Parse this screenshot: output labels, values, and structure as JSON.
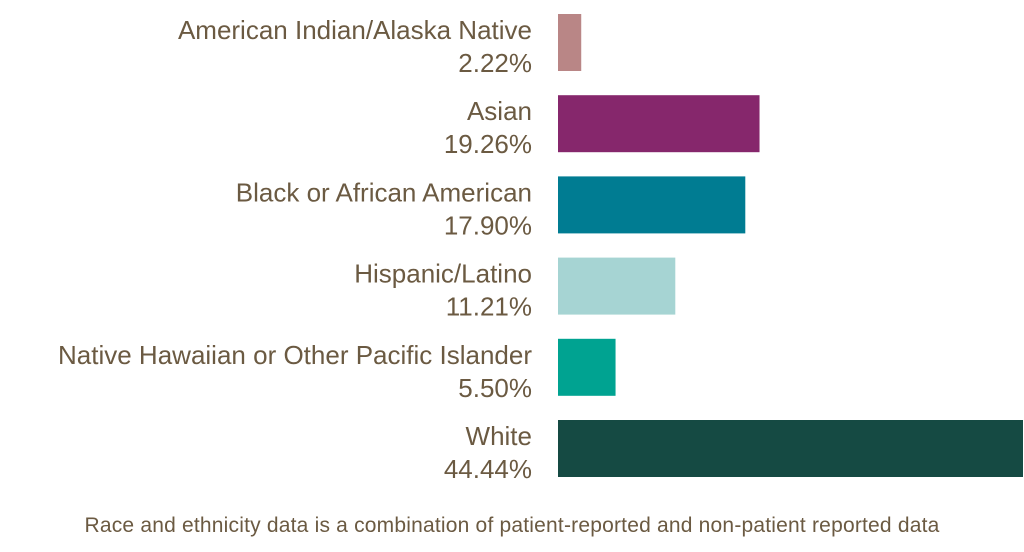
{
  "chart_data": {
    "type": "bar",
    "orientation": "horizontal",
    "categories": [
      "American Indian/Alaska Native",
      "Asian",
      "Black or African American",
      "Hispanic/Latino",
      "Native Hawaiian or Other Pacific Islander",
      "White"
    ],
    "values": [
      2.22,
      19.26,
      17.9,
      11.21,
      5.5,
      44.44
    ],
    "value_labels": [
      "2.22%",
      "19.26%",
      "17.90%",
      "11.21%",
      "5.50%",
      "44.44%"
    ],
    "colors": [
      "#b98686",
      "#86276c",
      "#007c92",
      "#a6d4d3",
      "#00a391",
      "#154a43"
    ],
    "xlim": [
      0,
      44.44
    ],
    "grid": false,
    "legend": "none"
  },
  "footnote": "Race and ethnicity data is a combination of patient-reported and non-patient reported data"
}
